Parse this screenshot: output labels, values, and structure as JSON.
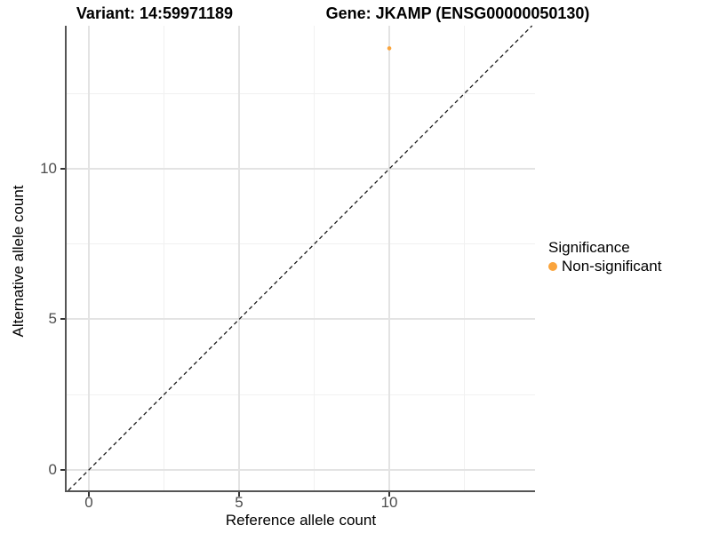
{
  "titles": {
    "variant": "Variant: 14:59971189",
    "gene": "Gene: JKAMP (ENSG00000050130)"
  },
  "chart_data": {
    "type": "scatter",
    "title_left": "Variant: 14:59971189",
    "title_right": "Gene: JKAMP (ENSG00000050130)",
    "xlabel": "Reference allele count",
    "ylabel": "Alternative allele count",
    "xlim": [
      -0.74,
      14.85
    ],
    "ylim": [
      -0.68,
      14.75
    ],
    "x_ticks": [
      0,
      5,
      10
    ],
    "y_ticks": [
      0,
      5,
      10
    ],
    "x_minor_ticks": [
      2.5,
      7.5,
      12.5
    ],
    "y_minor_ticks": [
      2.5,
      7.5,
      12.5
    ],
    "grid": "major and minor gridlines on white background",
    "series": [
      {
        "name": "Non-significant",
        "color": "#FAA43C",
        "points": [
          {
            "x": 10,
            "y": 14
          }
        ]
      }
    ],
    "reference_line": {
      "description": "identity line y = x",
      "style": "dashed",
      "color": "#1a1a1a",
      "from": -0.68,
      "to": 14.75
    },
    "legend": {
      "title": "Significance",
      "position": "right",
      "entries": [
        {
          "label": "Non-significant",
          "color": "#FAA43C"
        }
      ]
    }
  }
}
